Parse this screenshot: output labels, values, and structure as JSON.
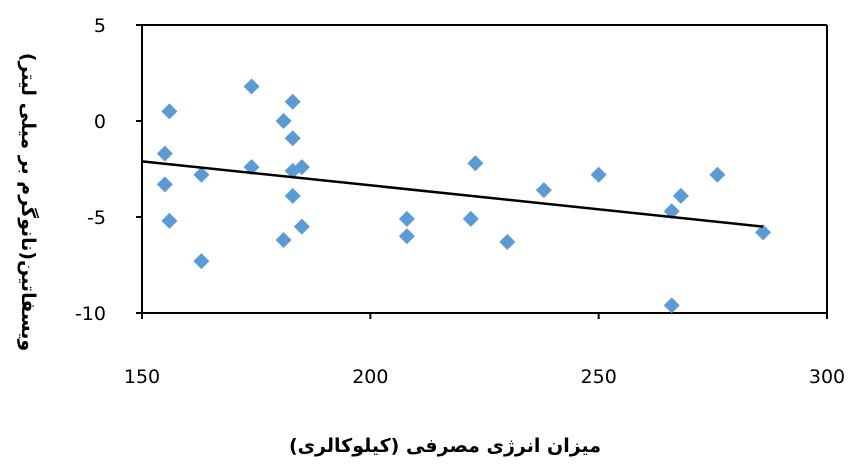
{
  "chart_data": {
    "type": "scatter",
    "title": "",
    "xlabel": "میزان انرژی مصرفی (کیلوکالری)",
    "ylabel": "ویسفاتین(نانوگرم بر میلی لیتر)",
    "xlim": [
      150,
      300
    ],
    "ylim": [
      -10,
      5
    ],
    "xticks": [
      "150",
      "200",
      "250",
      "300"
    ],
    "yticks": [
      "5",
      "0",
      "-5",
      "-10"
    ],
    "xtick_values": [
      150,
      200,
      250,
      300
    ],
    "ytick_values": [
      5,
      0,
      -5,
      -10
    ],
    "grid": false,
    "legend": "none",
    "marker": "diamond",
    "marker_color": "#5b9bd5",
    "points": [
      {
        "x": 156,
        "y": 0.5
      },
      {
        "x": 155,
        "y": -1.7
      },
      {
        "x": 155,
        "y": -3.3
      },
      {
        "x": 156,
        "y": -5.2
      },
      {
        "x": 163,
        "y": -2.8
      },
      {
        "x": 163,
        "y": -7.3
      },
      {
        "x": 174,
        "y": 1.8
      },
      {
        "x": 174,
        "y": -2.4
      },
      {
        "x": 181,
        "y": 0
      },
      {
        "x": 183,
        "y": 1
      },
      {
        "x": 183,
        "y": -0.9
      },
      {
        "x": 183,
        "y": -2.6
      },
      {
        "x": 185,
        "y": -2.4
      },
      {
        "x": 183,
        "y": -3.9
      },
      {
        "x": 185,
        "y": -5.5
      },
      {
        "x": 181,
        "y": -6.2
      },
      {
        "x": 208,
        "y": -5.1
      },
      {
        "x": 208,
        "y": -6
      },
      {
        "x": 223,
        "y": -2.2
      },
      {
        "x": 222,
        "y": -5.1
      },
      {
        "x": 230,
        "y": -6.3
      },
      {
        "x": 238,
        "y": -3.6
      },
      {
        "x": 250,
        "y": -2.8
      },
      {
        "x": 266,
        "y": -4.7
      },
      {
        "x": 268,
        "y": -3.9
      },
      {
        "x": 266,
        "y": -9.6
      },
      {
        "x": 276,
        "y": -2.8
      },
      {
        "x": 286,
        "y": -5.8
      }
    ],
    "trendline": {
      "x": [
        150,
        286
      ],
      "y": [
        -2.1,
        -5.5
      ],
      "color": "#000000"
    }
  }
}
